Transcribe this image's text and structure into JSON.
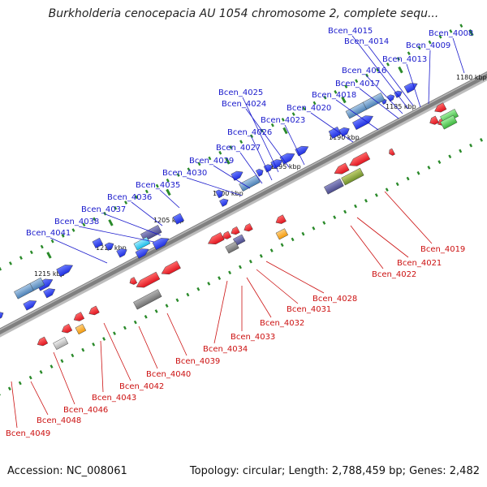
{
  "title": "Burkholderia cenocepacia AU 1054 chromosome 2, complete sequ...",
  "footer": {
    "accession": "Accession: NC_008061",
    "summary": "Topology: circular; Length: 2,788,459 bp; Genes: 2,482"
  },
  "scale_labels": [
    "1180 kbp",
    "1185 kbp",
    "1190 kbp",
    "1195 kbp",
    "1200 kbp",
    "1205 kbp",
    "1210 kbp",
    "1215 kbp"
  ],
  "forward_genes": [
    "Bcen_4008",
    "Bcen_4009",
    "Bcen_4013",
    "Bcen_4014",
    "Bcen_4015",
    "Bcen_4016",
    "Bcen_4017",
    "Bcen_4018",
    "Bcen_4020",
    "Bcen_4023",
    "Bcen_4024",
    "Bcen_4025",
    "Bcen_4026",
    "Bcen_4027",
    "Bcen_4029",
    "Bcen_4030",
    "Bcen_4035",
    "Bcen_4036",
    "Bcen_4037",
    "Bcen_4038",
    "Bcen_4041"
  ],
  "reverse_genes": [
    "Bcen_4019",
    "Bcen_4021",
    "Bcen_4022",
    "Bcen_4028",
    "Bcen_4031",
    "Bcen_4032",
    "Bcen_4033",
    "Bcen_4034",
    "Bcen_4039",
    "Bcen_4040",
    "Bcen_4042",
    "Bcen_4043",
    "Bcen_4046",
    "Bcen_4048",
    "Bcen_4049"
  ],
  "colors": {
    "forward_label": "#1a1acc",
    "reverse_label": "#cc1111",
    "forward_gene": "#1f2fe0",
    "reverse_gene": "#e0141e",
    "backbone": "#808080",
    "tick": "#2a8a2a",
    "rna": "#4a7fb5",
    "pseudo": "#6e6e6e",
    "orange": "#f39a0c",
    "navy": "#4a4a8a",
    "olive": "#6f8f2a",
    "green": "#3cb43c",
    "cyan": "#19bde8",
    "silver": "#aaaaaa"
  }
}
